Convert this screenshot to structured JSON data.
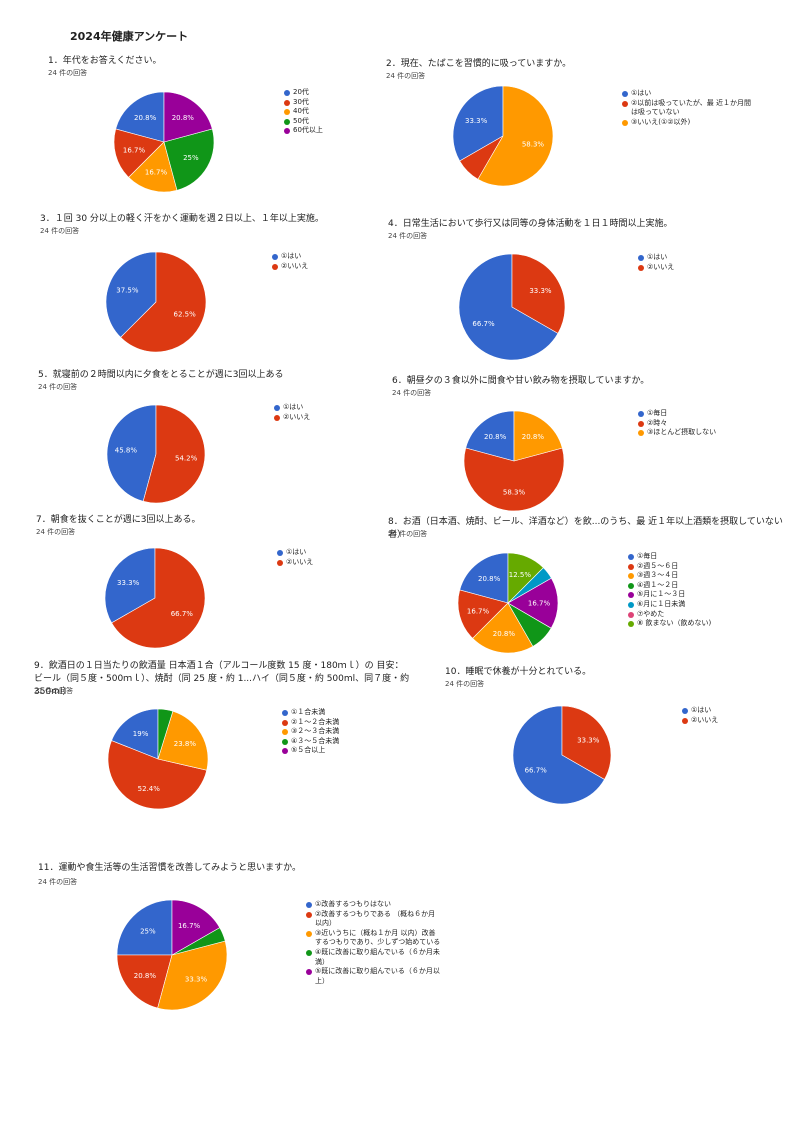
{
  "page": {
    "title": "2024年健康アンケート"
  },
  "colors": {
    "blue": "#3366cc",
    "red": "#dc3912",
    "orange": "#ff9900",
    "green": "#109618",
    "purple": "#990099",
    "teal": "#0099c6",
    "pink": "#dd4477",
    "lime": "#66aa00"
  },
  "chart_data": [
    {
      "type": "pie",
      "title": "1．年代をお答えください。",
      "responses": "24 件の回答",
      "series": [
        {
          "values": [
            20.8,
            16.7,
            16.7,
            25,
            20.8
          ]
        }
      ],
      "legend": [
        "20代",
        "30代",
        "40代",
        "50代",
        "60代以上"
      ],
      "labels": [
        "20.8%",
        "16.7%",
        "16.7%",
        "25%",
        "20.8%"
      ],
      "colors": [
        "#3366cc",
        "#dc3912",
        "#ff9900",
        "#109618",
        "#990099"
      ]
    },
    {
      "type": "pie",
      "title": "2．現在、たばこを習慣的に吸っていますか。",
      "responses": "24 件の回答",
      "series": [
        {
          "values": [
            33.3,
            8.3,
            58.3
          ]
        }
      ],
      "legend": [
        "①はい",
        "②以前は吸っていたが、最 近１か月間\nは吸っていない",
        "③いいえ(①②以外)"
      ],
      "labels": [
        "33.3%",
        "",
        "58.3%"
      ],
      "colors": [
        "#3366cc",
        "#dc3912",
        "#ff9900"
      ]
    },
    {
      "type": "pie",
      "title": "3．１回 30 分以上の軽く汗をかく運動を週２日以上、１年以上実施。",
      "responses": "24 件の回答",
      "series": [
        {
          "values": [
            37.5,
            62.5
          ]
        }
      ],
      "legend": [
        "①はい",
        "②いいえ"
      ],
      "labels": [
        "37.5%",
        "62.5%"
      ],
      "colors": [
        "#3366cc",
        "#dc3912"
      ]
    },
    {
      "type": "pie",
      "title": "4．日常生活において歩行又は同等の身体活動を１日１時間以上実施。",
      "responses": "24 件の回答",
      "series": [
        {
          "values": [
            66.7,
            33.3
          ]
        }
      ],
      "legend": [
        "①はい",
        "②いいえ"
      ],
      "labels": [
        "66.7%",
        "33.3%"
      ],
      "colors": [
        "#3366cc",
        "#dc3912"
      ]
    },
    {
      "type": "pie",
      "title": "5．就寝前の２時間以内に夕食をとることが週に3回以上ある",
      "responses": "24 件の回答",
      "series": [
        {
          "values": [
            45.8,
            54.2
          ]
        }
      ],
      "legend": [
        "①はい",
        "②いいえ"
      ],
      "labels": [
        "45.8%",
        "54.2%"
      ],
      "colors": [
        "#3366cc",
        "#dc3912"
      ]
    },
    {
      "type": "pie",
      "title": "6．朝昼夕の３食以外に間食や甘い飲み物を摂取していますか。",
      "responses": "24 件の回答",
      "series": [
        {
          "values": [
            20.8,
            58.3,
            20.8
          ]
        }
      ],
      "legend": [
        "①毎日",
        "②時々",
        "③ほとんど摂取しない"
      ],
      "labels": [
        "20.8%",
        "58.3%",
        "20.8%"
      ],
      "colors": [
        "#3366cc",
        "#dc3912",
        "#ff9900"
      ]
    },
    {
      "type": "pie",
      "title": "7．朝食を抜くことが週に3回以上ある。",
      "responses": "24 件の回答",
      "series": [
        {
          "values": [
            33.3,
            66.7
          ]
        }
      ],
      "legend": [
        "①はい",
        "②いいえ"
      ],
      "labels": [
        "33.3%",
        "66.7%"
      ],
      "colors": [
        "#3366cc",
        "#dc3912"
      ]
    },
    {
      "type": "pie",
      "title": "8．お酒（日本酒、焼酎、ビール、洋酒など）を飲...のうち、最 近１年以上酒類を摂取していない者）",
      "responses": "24 件の回答",
      "series": [
        {
          "values": [
            20.8,
            16.7,
            20.8,
            8.3,
            16.7,
            4.2,
            0,
            12.5
          ]
        }
      ],
      "legend": [
        "①毎日",
        "②週５～６日",
        "③週３～４日",
        "④週１～２日",
        "⑤月に１～３日",
        "⑥月に１日未満",
        "⑦やめた",
        "⑧ 飲まない（飲めない)"
      ],
      "labels": [
        "20.8%",
        "16.7%",
        "20.8%",
        "",
        "16.7%",
        "",
        "",
        "12.5%"
      ],
      "colors": [
        "#3366cc",
        "#dc3912",
        "#ff9900",
        "#109618",
        "#990099",
        "#0099c6",
        "#dd4477",
        "#66aa00"
      ]
    },
    {
      "type": "pie",
      "title": "9．飲酒日の１日当たりの飲酒量 日本酒１合（アルコール度数 15 度・180ｍｌ）の 目安：\nビール（同５度・500ｍｌ）、焼酎（同 25 度・約 1...ハイ（同５度・約 500ml、同７度・約 350ml）",
      "responses": "21 件の回答",
      "series": [
        {
          "values": [
            19,
            52.4,
            23.8,
            4.8,
            0
          ]
        }
      ],
      "legend": [
        "①１合未満",
        "②１～２合未満",
        "③２～３合未満",
        "④３～５合未満",
        "⑤５合以上"
      ],
      "labels": [
        "19%",
        "52.4%",
        "23.8%",
        "",
        ""
      ],
      "colors": [
        "#3366cc",
        "#dc3912",
        "#ff9900",
        "#109618",
        "#990099"
      ]
    },
    {
      "type": "pie",
      "title": "10．睡眠で休養が十分とれている。",
      "responses": "24 件の回答",
      "series": [
        {
          "values": [
            66.7,
            33.3
          ]
        }
      ],
      "legend": [
        "①はい",
        "②いいえ"
      ],
      "labels": [
        "66.7%",
        "33.3%"
      ],
      "colors": [
        "#3366cc",
        "#dc3912"
      ]
    },
    {
      "type": "pie",
      "title": "11．運動や食生活等の生活習慣を改善してみようと思いますか。",
      "responses": "24 件の回答",
      "series": [
        {
          "values": [
            25,
            20.8,
            33.3,
            4.2,
            16.7
          ]
        }
      ],
      "legend": [
        "①改善するつもりはない",
        "②改善するつもりである （概ね６か月\n以内）",
        "③近いうちに（概ね１か月 以内）改善\nするつもりであり、少しずつ始めている",
        "④既に改善に取り組んでいる（６か月未\n満）",
        "⑤既に改善に取り組んでいる（６か月以\n上）"
      ],
      "labels": [
        "25%",
        "20.8%",
        "33.3%",
        "",
        "16.7%"
      ],
      "colors": [
        "#3366cc",
        "#dc3912",
        "#ff9900",
        "#109618",
        "#990099"
      ]
    }
  ]
}
